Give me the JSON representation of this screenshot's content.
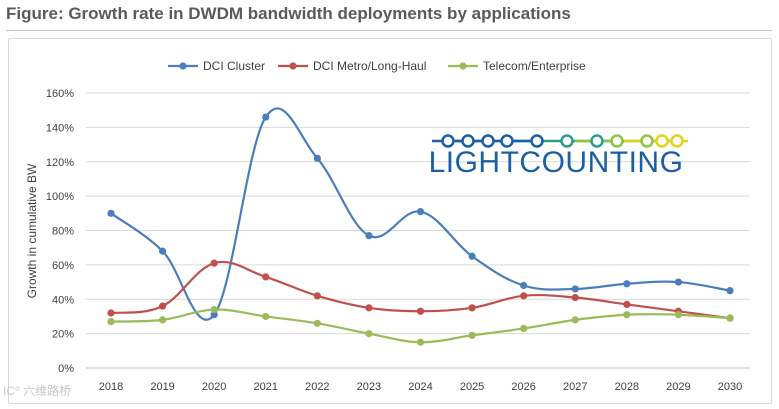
{
  "figure_title": "Figure: Growth rate in DWDM bandwidth deployments by applications",
  "logo": {
    "text": "LIGHTCOUNTING",
    "colors": {
      "blue": "#1a5fa3",
      "teal": "#2a9d8f",
      "green": "#8cc63f",
      "yellow": "#e3d21a"
    }
  },
  "watermark": "IC⁰ 六维路桥",
  "chart_data": {
    "type": "line",
    "title": "",
    "xlabel": "",
    "ylabel": "Growth in cumulative BW",
    "categories": [
      "2018",
      "2019",
      "2020",
      "2021",
      "2022",
      "2023",
      "2024",
      "2025",
      "2026",
      "2027",
      "2028",
      "2029",
      "2030"
    ],
    "ylim": [
      0,
      160
    ],
    "yticks": [
      0,
      20,
      40,
      60,
      80,
      100,
      120,
      140,
      160
    ],
    "ytick_labels": [
      "0%",
      "20%",
      "40%",
      "60%",
      "80%",
      "100%",
      "120%",
      "140%",
      "160%"
    ],
    "grid": true,
    "legend_position": "top",
    "series": [
      {
        "name": "DCI Cluster",
        "color": "#4a7ebb",
        "values": [
          90,
          68,
          31,
          146,
          122,
          77,
          91,
          65,
          48,
          46,
          49,
          50,
          45
        ]
      },
      {
        "name": "DCI Metro/Long-Haul",
        "color": "#c0504d",
        "values": [
          32,
          36,
          61,
          53,
          42,
          35,
          33,
          35,
          42,
          41,
          37,
          33,
          29
        ]
      },
      {
        "name": "Telecom/Enterprise",
        "color": "#9bbb59",
        "values": [
          27,
          28,
          34,
          30,
          26,
          20,
          15,
          19,
          23,
          28,
          31,
          31,
          29
        ]
      }
    ]
  }
}
